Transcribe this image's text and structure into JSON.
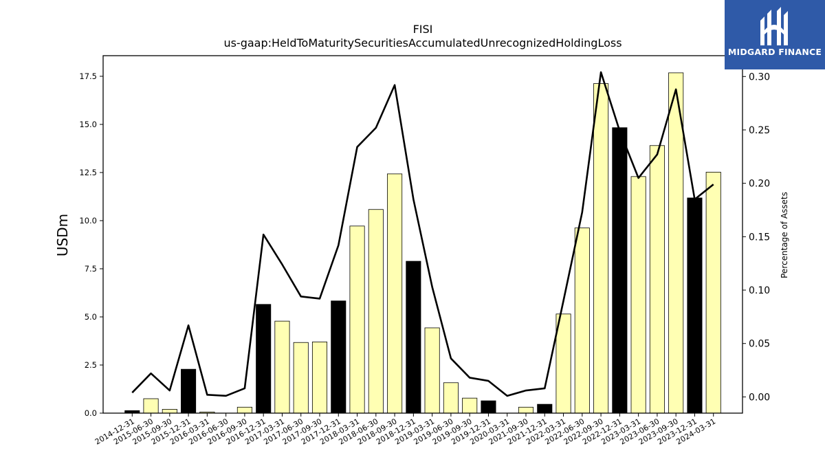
{
  "brand": {
    "name": "MIDGARD FINANCE",
    "color": "#2f5aa8"
  },
  "chart_data": {
    "type": "bar",
    "title": "FISI",
    "subtitle": "us-gaap:HeldToMaturitySecuritiesAccumulatedUnrecognizedHoldingLoss",
    "ylabel": "USDm",
    "y2label": "Percentage of Assets",
    "ylim": [
      0,
      18.57
    ],
    "y2lim": [
      -0.0152,
      0.3195
    ],
    "yticks": [
      "0.0",
      "2.5",
      "5.0",
      "7.5",
      "10.0",
      "12.5",
      "15.0",
      "17.5"
    ],
    "y2ticks": [
      "0.00",
      "0.05",
      "0.10",
      "0.15",
      "0.20",
      "0.25",
      "0.30"
    ],
    "grid": false,
    "categories": [
      "2014-12-31",
      "2015-06-30",
      "2015-09-30",
      "2015-12-31",
      "2016-03-31",
      "2016-06-30",
      "2016-09-30",
      "2016-12-31",
      "2017-03-31",
      "2017-06-30",
      "2017-09-30",
      "2017-12-31",
      "2018-03-31",
      "2018-06-30",
      "2018-09-30",
      "2018-12-31",
      "2019-03-31",
      "2019-06-30",
      "2019-09-30",
      "2019-12-31",
      "2020-03-31",
      "2021-09-30",
      "2021-12-31",
      "2022-03-31",
      "2022-06-30",
      "2022-09-30",
      "2022-12-31",
      "2023-03-31",
      "2023-06-30",
      "2023-09-30",
      "2023-12-31",
      "2024-03-31"
    ],
    "series": [
      {
        "kind": "bar",
        "axis": "left",
        "values": [
          0.13,
          0.75,
          0.2,
          2.28,
          0.06,
          0.0,
          0.31,
          5.65,
          4.78,
          3.67,
          3.7,
          5.83,
          9.72,
          10.58,
          12.43,
          7.89,
          4.43,
          1.58,
          0.78,
          0.64,
          0.0,
          0.31,
          0.46,
          5.15,
          9.62,
          17.12,
          14.83,
          12.29,
          13.9,
          17.68,
          11.18,
          12.52
        ],
        "year_end": [
          true,
          false,
          false,
          true,
          false,
          false,
          false,
          true,
          false,
          false,
          false,
          true,
          false,
          false,
          false,
          true,
          false,
          false,
          false,
          true,
          false,
          false,
          true,
          false,
          false,
          false,
          true,
          false,
          false,
          false,
          true,
          false
        ],
        "color_year_end": "#000000",
        "color_other": "#ffffb3"
      },
      {
        "kind": "line",
        "axis": "right",
        "color": "#000000",
        "values": [
          0.004,
          0.022,
          0.006,
          0.067,
          0.002,
          0.001,
          0.008,
          0.152,
          0.124,
          0.094,
          0.092,
          0.142,
          0.234,
          0.252,
          0.292,
          0.185,
          0.103,
          0.036,
          0.018,
          0.015,
          0.001,
          0.006,
          0.008,
          0.09,
          0.173,
          0.304,
          0.249,
          0.205,
          0.227,
          0.288,
          0.185,
          0.199
        ]
      }
    ]
  }
}
